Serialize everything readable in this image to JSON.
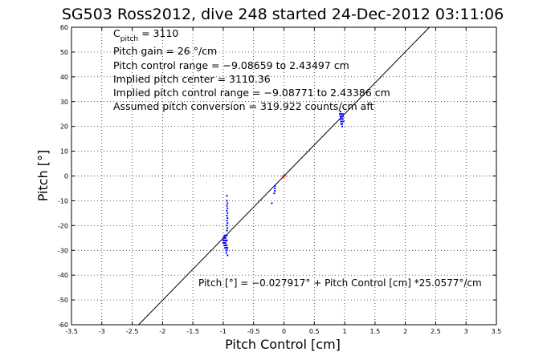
{
  "chart_data": {
    "type": "scatter",
    "title": "SG503 Ross2012, dive 248 started 24-Dec-2012 03:11:06",
    "xlabel": "Pitch Control [cm]",
    "ylabel": "Pitch [°]",
    "xlim": [
      -3.5,
      3.5
    ],
    "ylim": [
      -60,
      60
    ],
    "xticks": [
      "-3.5",
      "-3",
      "-2.5",
      "-2",
      "-1.5",
      "-1",
      "-0.5",
      "0",
      "0.5",
      "1",
      "1.5",
      "2",
      "2.5",
      "3",
      "3.5"
    ],
    "yticks": [
      "-60",
      "-50",
      "-40",
      "-30",
      "-20",
      "-10",
      "0",
      "10",
      "20",
      "30",
      "40",
      "50",
      "60"
    ],
    "grid": true,
    "annotations": {
      "c_pitch_label": "C",
      "c_pitch_sub": "pitch",
      "c_pitch_value": " = 3110",
      "pitch_gain": "Pitch gain = 26 °/cm",
      "pitch_control_range": "Pitch control range = −9.08659 to 2.43497 cm",
      "implied_pitch_center": "Implied pitch center = 3110.36",
      "implied_pitch_control_range": "Implied pitch control range = −9.08771 to 2.43386 cm",
      "assumed_pitch_conversion": "Assumed pitch conversion = 319.922 counts/cm aft",
      "fit_equation": "Pitch [°] = −0.027917° + Pitch Control [cm] *25.0577°/cm"
    },
    "fit_line": {
      "intercept": -0.027917,
      "slope": 25.0577,
      "color": "#000000"
    },
    "center_marker": {
      "x": 0.0,
      "y": 0.0,
      "color": "#ff0000"
    },
    "series": [
      {
        "color": "#0000ff",
        "x": [
          -1.0,
          -1.0,
          -1.0,
          -0.99,
          -0.99,
          -0.98,
          -0.98,
          -0.97,
          -0.97,
          -0.96,
          -0.96,
          -0.95,
          -0.95,
          -0.95,
          -0.95,
          -0.95,
          -0.94,
          -0.94,
          -0.94,
          -0.94,
          -0.94,
          -0.94,
          -0.94,
          -0.94,
          -0.94,
          -0.94,
          -0.94,
          -0.93,
          -0.93,
          -0.93,
          -0.93,
          -0.93,
          -0.93,
          -0.93,
          -0.93,
          -0.94,
          -0.95,
          -0.96,
          -0.96,
          -0.97,
          -0.98,
          -0.99,
          -0.15,
          -0.15,
          -0.16,
          -0.15,
          -0.2,
          0.92,
          0.93,
          0.93,
          0.94,
          0.94,
          0.95,
          0.95,
          0.95,
          0.96,
          0.96,
          0.97,
          0.97,
          0.98,
          0.93,
          0.94,
          0.95,
          0.96,
          0.97
        ],
        "y": [
          -25,
          -26,
          -27,
          -25,
          -27,
          -24,
          -28,
          -26,
          -29,
          -25,
          -27,
          -24,
          -26,
          -28,
          -30,
          -31,
          -8,
          -10,
          -12,
          -14,
          -16,
          -18,
          -20,
          -22,
          -24,
          -26,
          -28,
          -11,
          -13,
          -15,
          -17,
          -19,
          -21,
          -29,
          -32,
          -30,
          -29,
          -26,
          -28,
          -27,
          -25,
          -26,
          -5,
          -6,
          -7,
          -4,
          -11,
          25,
          23,
          24,
          22,
          25,
          23,
          24,
          22,
          24,
          21,
          23,
          25,
          22,
          26,
          21,
          25,
          20,
          24
        ]
      }
    ]
  }
}
